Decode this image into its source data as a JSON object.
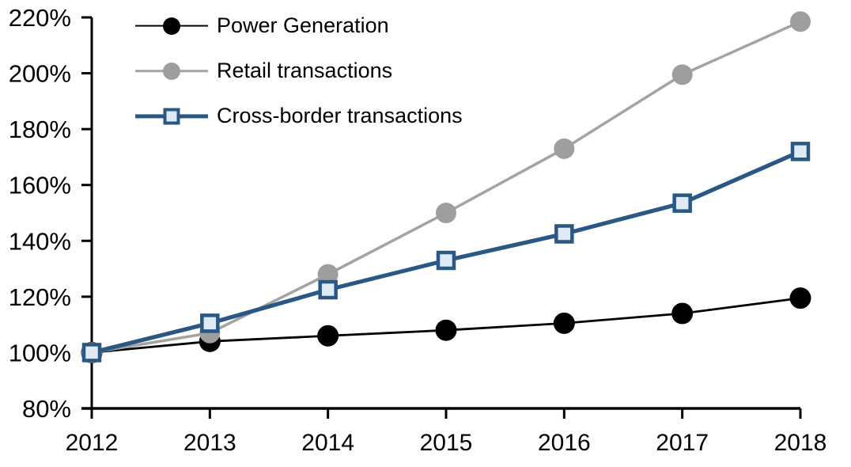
{
  "chart_data": {
    "type": "line",
    "title": "",
    "x": [
      2012,
      2013,
      2014,
      2015,
      2016,
      2017,
      2018
    ],
    "xtick_labels": [
      "2012",
      "2013",
      "2014",
      "2015",
      "2016",
      "2017",
      "2018"
    ],
    "ylim": [
      80,
      220
    ],
    "ytick_step": 20,
    "ytick_labels": [
      "80%",
      "100%",
      "120%",
      "140%",
      "160%",
      "180%",
      "200%",
      "220%"
    ],
    "grid": false,
    "legend_position": "top-left-inside",
    "axis_color": "#000000",
    "background_color": "#FFFFFF",
    "series": [
      {
        "name": "Power Generation",
        "values": [
          100,
          104,
          106,
          108,
          110.5,
          114,
          119.5
        ],
        "color": "#000000",
        "marker": "circle",
        "marker_fill": "#000000",
        "marker_size": 27,
        "line_width": 2.8
      },
      {
        "name": "Retail transactions",
        "values": [
          100,
          107,
          128,
          150,
          173,
          199.5,
          218.5
        ],
        "color": "#A3A3A3",
        "marker": "circle",
        "marker_fill": "#9E9E9E",
        "marker_size": 26,
        "line_width": 3.5
      },
      {
        "name": "Cross-border transactions",
        "values": [
          100,
          110.5,
          122.5,
          133,
          142.5,
          153.5,
          172
        ],
        "color": "#2A5783",
        "marker": "square",
        "marker_fill": "#DEEAF6",
        "marker_size": 20,
        "line_width": 5.2
      }
    ]
  }
}
